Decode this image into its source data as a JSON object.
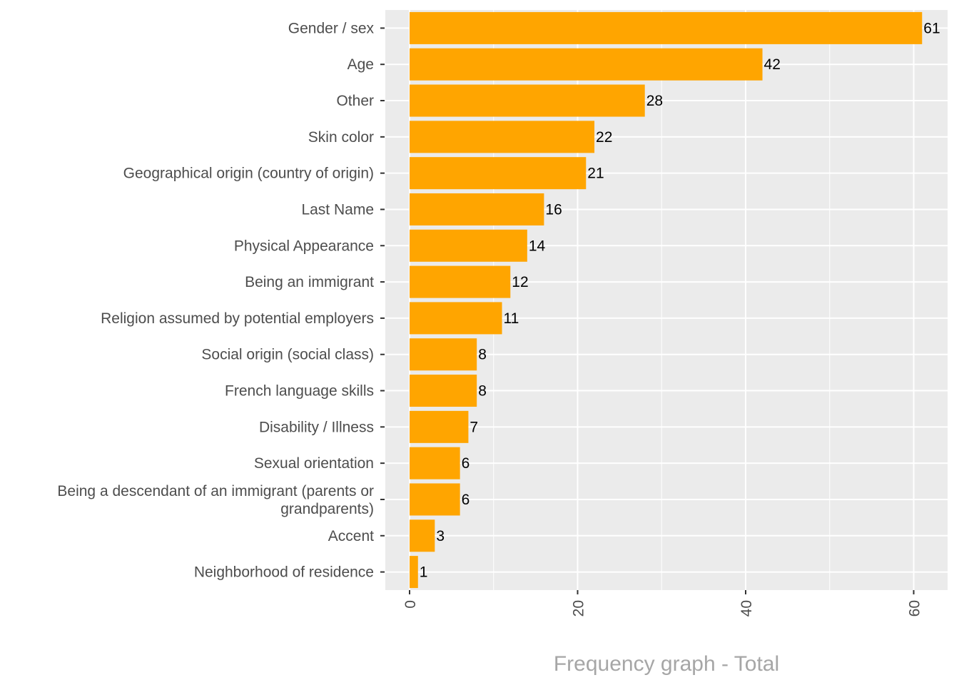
{
  "chart_data": {
    "type": "bar",
    "orientation": "horizontal",
    "categories": [
      "Gender / sex",
      "Age",
      "Other",
      "Skin color",
      "Geographical origin (country of origin)",
      "Last Name",
      "Physical Appearance",
      "Being an immigrant",
      "Religion assumed by potential employers",
      "Social origin (social class)",
      "French language skills",
      "Disability / Illness",
      "Sexual orientation",
      "Being a descendant of an immigrant (parents or grandparents)",
      "Accent",
      "Neighborhood of residence"
    ],
    "values": [
      61,
      42,
      28,
      22,
      21,
      16,
      14,
      12,
      11,
      8,
      8,
      7,
      6,
      6,
      3,
      1
    ],
    "xlabel": "Frequency graph - Total",
    "ylabel": "",
    "xlim": [
      0,
      64
    ],
    "x_ticks": [
      0,
      20,
      40,
      60
    ],
    "tick_label_rotation": "vertical",
    "grid": true,
    "legend": "none",
    "colors": {
      "bar": "#FFA500",
      "panel": "#EBEBEB",
      "grid": "#FFFFFF",
      "category_text": "#4D4D4D",
      "value_text": "#000000",
      "axis_title": "#A6A6A6"
    }
  }
}
